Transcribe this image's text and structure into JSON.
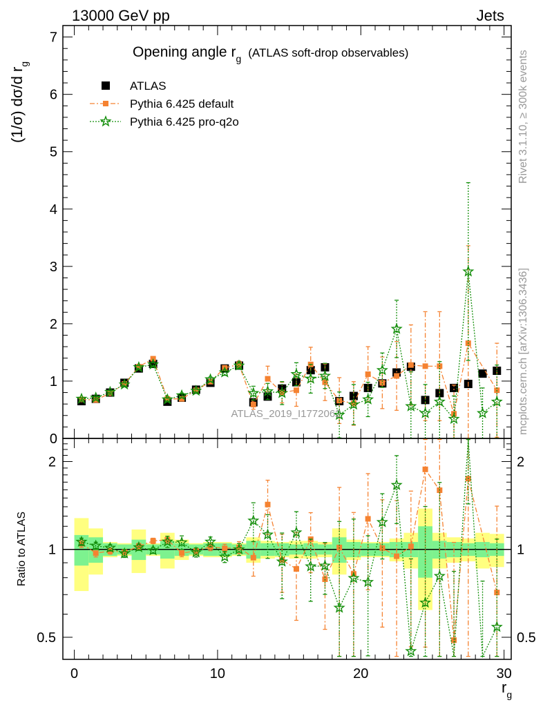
{
  "header": {
    "left_label": "13000 GeV pp",
    "right_label": "Jets"
  },
  "title": {
    "main": "Opening angle r",
    "main_sub": "g",
    "suffix": "(ATLAS soft-drop observables)"
  },
  "side_labels": {
    "rivet": "Rivet 3.1.10, ≥ 300k events",
    "mcplots": "mcplots.cern.ch [arXiv:1306.3436]"
  },
  "watermark": "ATLAS_2019_I1772062",
  "axes": {
    "top_ylabel_main": "(1/σ) dσ/d r",
    "top_ylabel_sub": "g",
    "bottom_ylabel": "Ratio to ATLAS",
    "xlabel_main": "r",
    "xlabel_sub": "g",
    "x_ticks": [
      "0",
      "10",
      "20",
      "30"
    ],
    "top_y_ticks": [
      "0",
      "1",
      "2",
      "3",
      "4",
      "5",
      "6",
      "7"
    ],
    "ratio_y_ticks": [
      "0.5",
      "1",
      "2"
    ]
  },
  "legend": [
    {
      "label": "ATLAS",
      "color": "#000000",
      "marker": "square"
    },
    {
      "label": "Pythia 6.425 default",
      "color": "#f58231",
      "marker": "square"
    },
    {
      "label": "Pythia 6.425 pro-q2o",
      "color": "#138e0a",
      "marker": "star"
    }
  ],
  "chart_data": {
    "type": "scatter",
    "x_range": [
      -0.8,
      30.5
    ],
    "top_ylim": [
      0,
      7.2
    ],
    "ratio_ylim": [
      0.42,
      2.4
    ],
    "ratio_scale": "log",
    "x": [
      0.5,
      1.5,
      2.5,
      3.5,
      4.5,
      5.5,
      6.5,
      7.5,
      8.5,
      9.5,
      10.5,
      11.5,
      12.5,
      13.5,
      14.5,
      15.5,
      16.5,
      17.5,
      18.5,
      19.5,
      20.5,
      21.5,
      22.5,
      23.5,
      24.5,
      25.5,
      26.5,
      27.5,
      28.5,
      29.5
    ],
    "series": [
      {
        "name": "ATLAS",
        "color": "#000000",
        "values": [
          0.65,
          0.69,
          0.8,
          0.97,
          1.22,
          1.3,
          0.64,
          0.71,
          0.85,
          0.97,
          1.22,
          1.27,
          0.63,
          0.73,
          0.87,
          0.98,
          1.19,
          1.24,
          0.65,
          0.74,
          0.88,
          0.96,
          1.15,
          1.25,
          0.67,
          0.79,
          0.88,
          0.95,
          1.13,
          1.18
        ]
      },
      {
        "name": "Pythia 6.425 default",
        "color": "#f58231",
        "values": [
          0.68,
          0.67,
          0.79,
          0.95,
          1.25,
          1.39,
          0.69,
          0.69,
          0.84,
          0.99,
          1.23,
          1.29,
          0.59,
          1.04,
          0.8,
          0.84,
          1.29,
          0.98,
          0.66,
          0.61,
          1.12,
          0.97,
          1.09,
          1.28,
          1.26,
          1.26,
          0.43,
          1.66,
          null,
          0.84
        ],
        "errors": [
          0.02,
          0.02,
          0.02,
          0.02,
          0.03,
          0.03,
          0.02,
          0.02,
          0.02,
          0.03,
          0.04,
          0.06,
          0.08,
          0.22,
          0.18,
          0.28,
          0.3,
          0.32,
          0.4,
          0.38,
          0.48,
          0.45,
          0.6,
          0.7,
          0.95,
          0.95,
          0.5,
          1.7,
          null,
          0.82
        ]
      },
      {
        "name": "Pythia 6.425 pro-q2o",
        "color": "#138e0a",
        "values": [
          0.69,
          0.71,
          0.81,
          0.94,
          1.24,
          1.29,
          0.68,
          0.75,
          0.83,
          1.03,
          1.15,
          1.27,
          0.79,
          0.82,
          0.79,
          1.12,
          1.04,
          1.09,
          0.41,
          0.59,
          0.68,
          1.19,
          1.91,
          0.56,
          0.44,
          0.64,
          0.34,
          2.91,
          0.44,
          0.64
        ],
        "errors": [
          0.02,
          0.02,
          0.02,
          0.03,
          0.03,
          0.03,
          0.03,
          0.04,
          0.03,
          0.04,
          0.05,
          0.06,
          0.12,
          0.14,
          0.2,
          0.2,
          0.25,
          0.22,
          0.4,
          0.35,
          0.3,
          0.3,
          0.5,
          0.6,
          0.5,
          0.7,
          0.4,
          1.55,
          0.44,
          0.64
        ]
      }
    ],
    "ratio_band_inner": [
      0.12,
      0.1,
      0.05,
      0.04,
      0.08,
      0.04,
      0.07,
      0.05,
      0.04,
      0.05,
      0.05,
      0.04,
      0.07,
      0.05,
      0.05,
      0.04,
      0.05,
      0.04,
      0.1,
      0.06,
      0.05,
      0.05,
      0.06,
      0.06,
      0.2,
      0.07,
      0.06,
      0.05,
      0.06,
      0.05
    ],
    "ratio_band_outer": [
      0.28,
      0.18,
      0.06,
      0.05,
      0.17,
      0.05,
      0.14,
      0.08,
      0.05,
      0.06,
      0.06,
      0.05,
      0.1,
      0.07,
      0.06,
      0.07,
      0.07,
      0.06,
      0.18,
      0.08,
      0.06,
      0.06,
      0.09,
      0.14,
      0.38,
      0.14,
      0.1,
      0.09,
      0.14,
      0.13
    ]
  }
}
